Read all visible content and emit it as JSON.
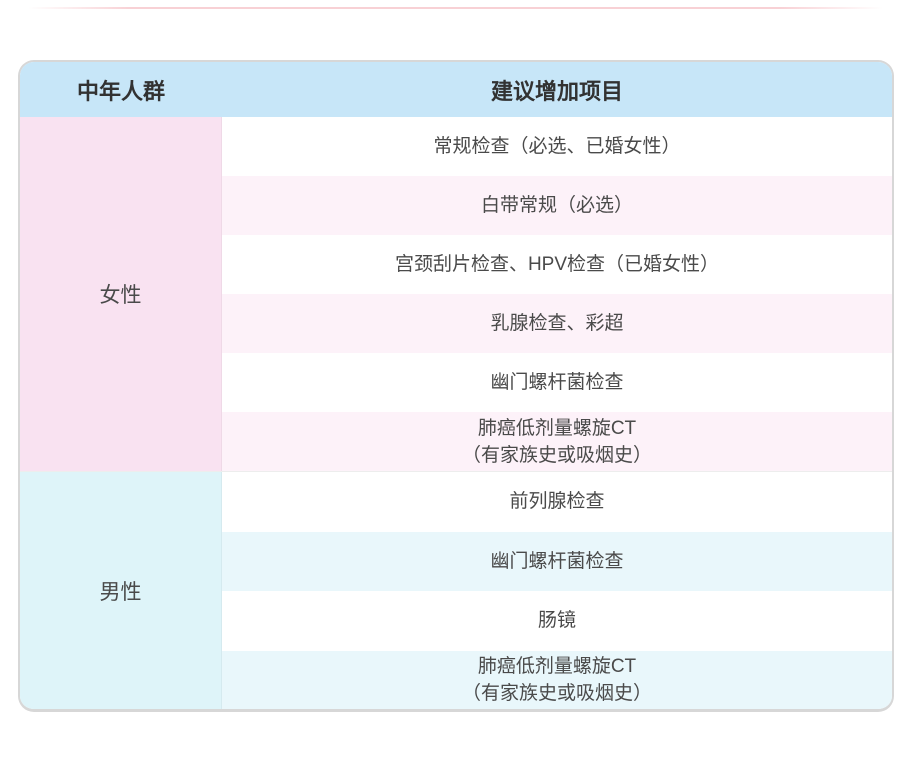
{
  "table": {
    "header": {
      "col1": "中年人群",
      "col2": "建议增加项目"
    },
    "sections": [
      {
        "id": "female",
        "label": "女性",
        "label_bg": "#f9e2f1",
        "row_tint": "#fdf2f9",
        "rows": [
          [
            "常规检查（必选、已婚女性）"
          ],
          [
            "白带常规（必选）"
          ],
          [
            "宫颈刮片检查、HPV检查（已婚女性）"
          ],
          [
            "乳腺检查、彩超"
          ],
          [
            "幽门螺杆菌检查"
          ],
          [
            "肺癌低剂量螺旋CT",
            "（有家族史或吸烟史）"
          ]
        ]
      },
      {
        "id": "male",
        "label": "男性",
        "label_bg": "#def4f9",
        "row_tint": "#e9f7fb",
        "rows": [
          [
            "前列腺检查"
          ],
          [
            "幽门螺杆菌检查"
          ],
          [
            "肠镜"
          ],
          [
            "肺癌低剂量螺旋CT",
            "（有家族史或吸烟史）"
          ]
        ]
      }
    ],
    "colors": {
      "header_bg": "#c7e6f8",
      "header_text": "#323232",
      "body_text": "#4a4a4a",
      "card_border": "#d7d7d7",
      "top_hairline": "#ee8c96"
    }
  }
}
